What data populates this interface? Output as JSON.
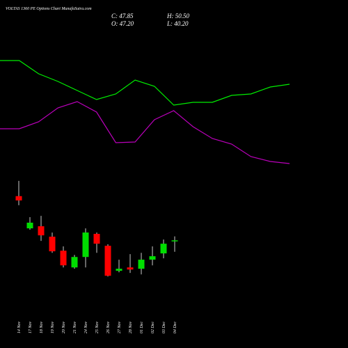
{
  "chart_data": [
    {
      "type": "candlestick",
      "title": "VOLTAS 1360 PE Options Chart MunafaSutra.com",
      "quote": [
        "C: 47.85",
        "H: 50.50",
        "O: 47.20",
        "L: 40.20"
      ],
      "categories": [
        "14 Nov",
        "17 Nov",
        "18 Nov",
        "19 Nov",
        "20 Nov",
        "21 Nov",
        "24 Nov",
        "25 Nov",
        "26 Nov",
        "27 Nov",
        "28 Nov",
        "01 Dec",
        "02 Dec",
        "03 Dec",
        "04 Dec"
      ],
      "open": [
        77.5,
        55.9,
        57.3,
        50.3,
        40.9,
        29.7,
        36.7,
        52.2,
        44.2,
        27.4,
        29.7,
        28.8,
        34.9,
        39.1,
        47.2
      ],
      "high": [
        87.7,
        63.4,
        64.3,
        53.1,
        43.8,
        38.1,
        55.9,
        53.1,
        45.2,
        34.9,
        38.6,
        39.5,
        43.8,
        48.4,
        50.5
      ],
      "low": [
        71.4,
        55.0,
        47.5,
        39.5,
        29.7,
        28.8,
        29.7,
        39.5,
        23.6,
        26.4,
        26.0,
        25.0,
        31.1,
        35.8,
        40.2
      ],
      "close": [
        74.6,
        59.7,
        51.2,
        40.5,
        31.1,
        36.7,
        53.1,
        45.6,
        24.1,
        28.8,
        28.3,
        34.9,
        37.2,
        45.6,
        47.85
      ],
      "up_color": "#00dd00",
      "down_color": "#ff0000",
      "ylim": [
        20,
        90
      ]
    },
    {
      "type": "line",
      "series": [
        {
          "color": "#00ee00",
          "values": [
            86.5,
            86.5,
            77,
            71.5,
            65,
            58.5,
            62.5,
            72.5,
            68,
            54.5,
            56.5,
            56.5,
            61.5,
            62.5,
            67.5,
            69.5
          ]
        },
        {
          "color": "#bb00bb",
          "values": [
            37.5,
            37.5,
            42.5,
            52.5,
            57,
            49.5,
            27.5,
            28,
            44,
            50.5,
            39,
            30.5,
            26.5,
            17.5,
            14,
            12.5
          ]
        }
      ],
      "ylim": [
        0,
        100
      ]
    }
  ]
}
